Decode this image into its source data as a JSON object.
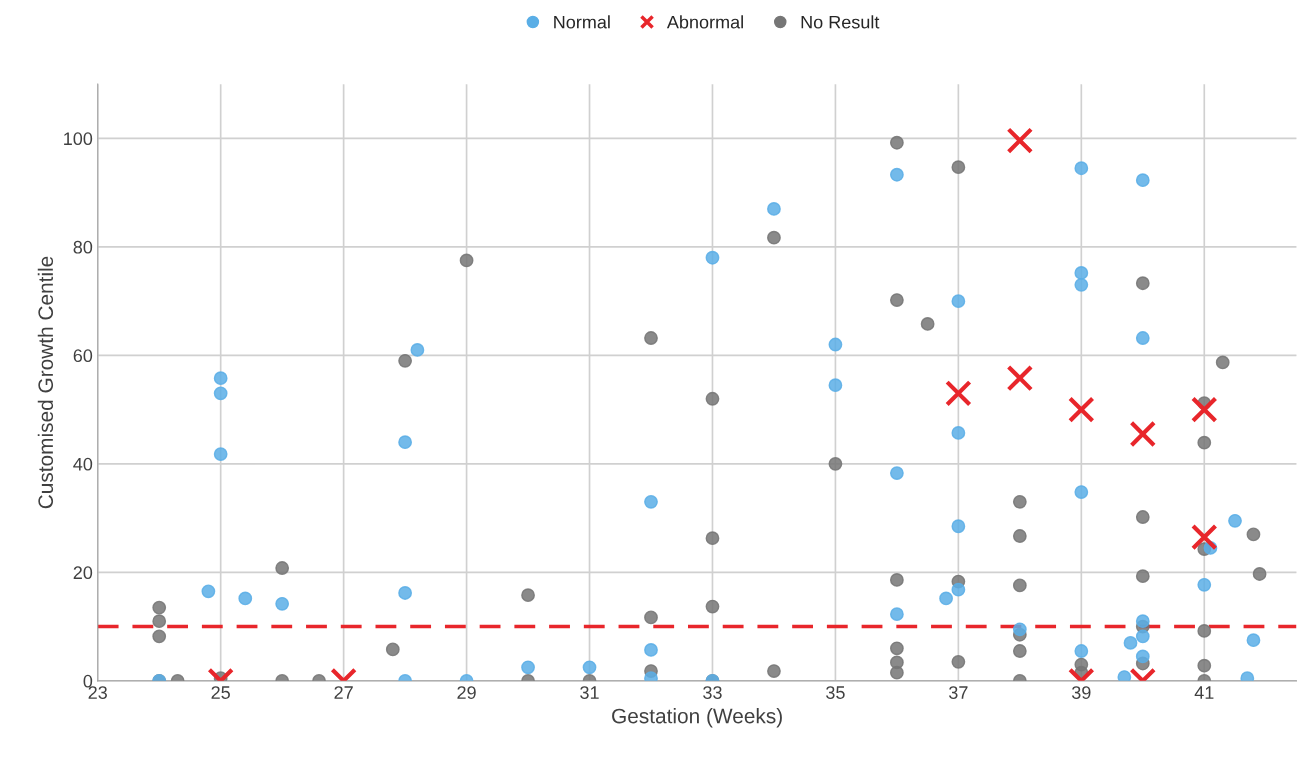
{
  "chart_data": {
    "type": "scatter",
    "xlabel": "Gestation (Weeks)",
    "ylabel": "Customised Growth Centile",
    "xlim": [
      23,
      42.5
    ],
    "xticks": [
      23,
      25,
      27,
      29,
      31,
      33,
      35,
      37,
      39,
      41
    ],
    "ylim": [
      0,
      110
    ],
    "yticks": [
      0,
      20,
      40,
      60,
      80,
      100
    ],
    "grid": true,
    "legend": "top",
    "ref_lines": [
      {
        "axis": "y",
        "value": 10,
        "color": "#e8262b",
        "line_style": "dashed"
      }
    ],
    "series": [
      {
        "name": "Normal",
        "color": "#5aaee6",
        "marker": "circle",
        "x": [
          25,
          25,
          25,
          24.8,
          25.4,
          26,
          28,
          28.2,
          28,
          28,
          24,
          29,
          30,
          31,
          32,
          32,
          32,
          33,
          33,
          34,
          35,
          35,
          36,
          36,
          36,
          37,
          37,
          37,
          37,
          36.8,
          38,
          39,
          39,
          39,
          39,
          39,
          39.8,
          39.7,
          40,
          40,
          40,
          40,
          40,
          41,
          41.1,
          41.5,
          41.8,
          41.7
        ],
        "values": [
          55.8,
          53,
          41.8,
          16.5,
          15.2,
          14.2,
          44,
          61,
          16.2,
          0,
          0,
          0,
          2.5,
          2.5,
          33,
          5.7,
          0.5,
          78,
          0,
          87,
          62,
          54.5,
          93.3,
          38.3,
          12.3,
          70,
          45.7,
          28.5,
          16.8,
          15.2,
          9.5,
          94.5,
          75.2,
          73,
          34.8,
          5.5,
          7,
          0.7,
          92.3,
          63.2,
          11,
          8.2,
          4.5,
          17.7,
          24.5,
          29.5,
          7.5,
          0.5
        ]
      },
      {
        "name": "Abnormal",
        "color": "#e8262b",
        "marker": "cross",
        "x": [
          25,
          27,
          37,
          38,
          38,
          39,
          39,
          40,
          40,
          41,
          41
        ],
        "values": [
          0,
          0,
          53,
          99.6,
          55.8,
          50,
          0,
          45.5,
          0,
          50,
          26.5
        ]
      },
      {
        "name": "No Result",
        "color": "#767676",
        "marker": "circle",
        "x": [
          24,
          24,
          24,
          24,
          24.3,
          25,
          26,
          26,
          26.6,
          27.8,
          28,
          29,
          30,
          30,
          31,
          32,
          32,
          32,
          33,
          33,
          33,
          33,
          34,
          34,
          35,
          36,
          36,
          36,
          36,
          36,
          36,
          36.5,
          37,
          37,
          37,
          38,
          38,
          38,
          38,
          38,
          38,
          39,
          39,
          40,
          40,
          40,
          40,
          40,
          41,
          41,
          41,
          41,
          41,
          41,
          41.3,
          41.8,
          41.9
        ],
        "values": [
          13.5,
          11,
          8.2,
          0,
          0,
          0.5,
          20.8,
          0,
          0,
          5.8,
          59,
          77.5,
          15.8,
          0,
          0,
          63.2,
          11.7,
          1.8,
          52,
          26.3,
          13.7,
          0,
          81.7,
          1.8,
          40,
          99.2,
          70.2,
          18.6,
          6,
          3.4,
          1.5,
          65.8,
          94.7,
          18.3,
          3.5,
          33,
          26.7,
          17.6,
          8.5,
          5.5,
          0,
          3,
          1.5,
          73.3,
          30.2,
          19.3,
          10,
          3.2,
          51.2,
          43.9,
          24.3,
          9.2,
          2.8,
          0,
          58.7,
          27,
          19.7
        ]
      }
    ]
  }
}
